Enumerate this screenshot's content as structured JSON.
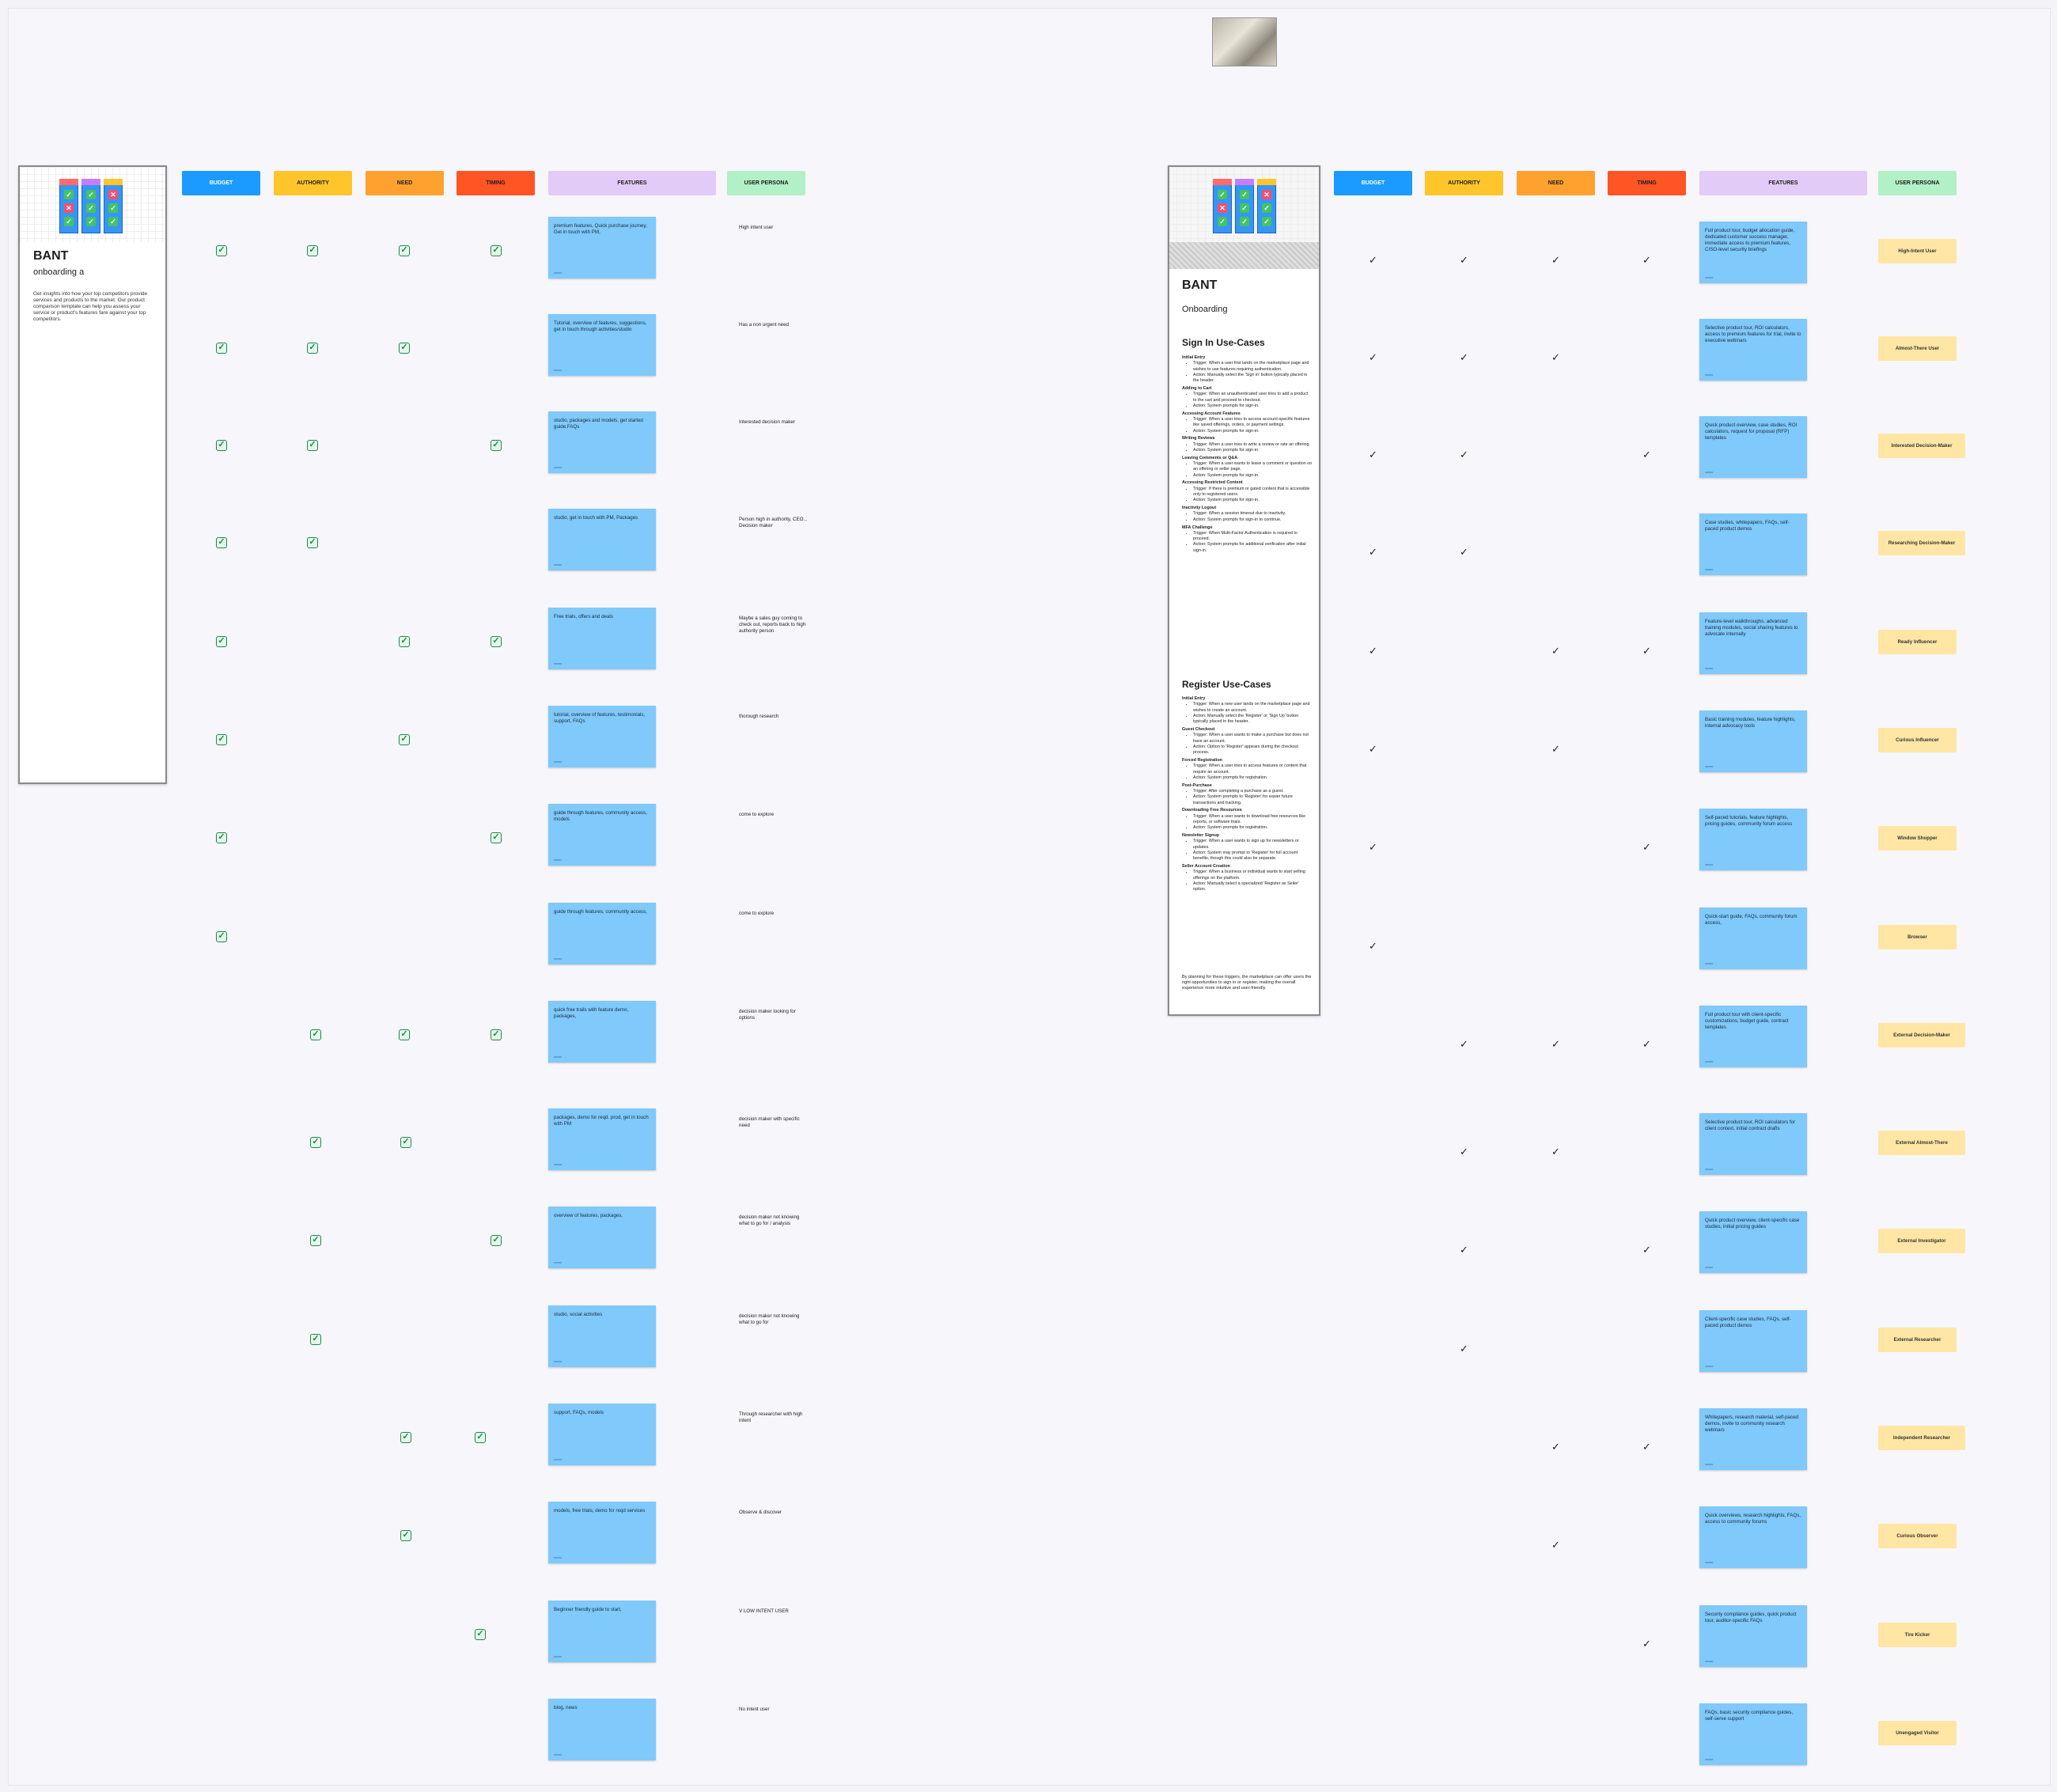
{
  "colors": {
    "budget": "#1b9bff",
    "authority": "#ffc52a",
    "need": "#ffa12e",
    "timing": "#ff5424",
    "features": "#e2cbf7",
    "persona": "#b2f0c7",
    "note": "#7fc9fb",
    "persona_chip": "#ffe6a5"
  },
  "left_card": {
    "title": "BANT",
    "subtitle": "onboarding a",
    "description": "Get insights into how your top competitors provide services and products to the market. Our product comparison template can help you assess your service or product's features fare against your top competitors."
  },
  "right_card": {
    "title": "BANT",
    "subtitle": "Onboarding",
    "signin_heading": "Sign In Use-Cases",
    "signin": [
      {
        "name": "Initial Entry",
        "points": [
          "Trigger: When a user first lands on the marketplace page and wishes to use features requiring authentication.",
          "Action: Manually select the 'Sign in' button typically placed in the header."
        ]
      },
      {
        "name": "Adding to Cart",
        "points": [
          "Trigger: When an unauthenticated user tries to add a product to the cart and proceed to checkout.",
          "Action: System prompts for sign-in."
        ]
      },
      {
        "name": "Accessing Account Features",
        "points": [
          "Trigger: When a user tries to access account-specific features like saved offerings, orders, or payment settings.",
          "Action: System prompts for sign-in."
        ]
      },
      {
        "name": "Writing Reviews",
        "points": [
          "Trigger: When a user tries to write a review or rate an offering.",
          "Action: System prompts for sign-in."
        ]
      },
      {
        "name": "Leaving Comments or Q&A",
        "points": [
          "Trigger: When a user wants to leave a comment or question on an offering or seller page.",
          "Action: System prompts for sign-in."
        ]
      },
      {
        "name": "Accessing Restricted Content",
        "points": [
          "Trigger: If there is premium or gated content that is accessible only to registered users.",
          "Action: System prompts for sign-in."
        ]
      },
      {
        "name": "Inactivity Logout",
        "points": [
          "Trigger: When a session timeout due to inactivity.",
          "Action: System prompts for sign-in to continue."
        ]
      },
      {
        "name": "MFA Challenge",
        "points": [
          "Trigger: When Multi-Factor Authentication is required to proceed.",
          "Action: System prompts for additional verification after initial sign-in."
        ]
      }
    ],
    "register_heading": "Register Use-Cases",
    "register": [
      {
        "name": "Initial Entry",
        "points": [
          "Trigger: When a new user lands on the marketplace page and wishes to create an account.",
          "Action: Manually select the 'Register' or 'Sign Up' button typically placed in the header."
        ]
      },
      {
        "name": "Guest Checkout",
        "points": [
          "Trigger: When a user wants to make a purchase but does not have an account.",
          "Action: Option to 'Register' appears during the checkout process."
        ]
      },
      {
        "name": "Forced Registration",
        "points": [
          "Trigger: When a user tries to access features or content that require an account.",
          "Action: System prompts for registration."
        ]
      },
      {
        "name": "Post-Purchase",
        "points": [
          "Trigger: After completing a purchase as a guest.",
          "Action: System prompts to 'Register' for easier future transactions and tracking."
        ]
      },
      {
        "name": "Downloading Free Resources",
        "points": [
          "Trigger: When a user wants to download free resources like reports, or software trials.",
          "Action: System prompts for registration."
        ]
      },
      {
        "name": "Newsletter Signup",
        "points": [
          "Trigger: When a user wants to sign up for newsletters or updates.",
          "Action: System may prompt to 'Register' for full account benefits, though this could also be separate."
        ]
      },
      {
        "name": "Seller Account Creation",
        "points": [
          "Trigger: When a business or individual wants to start selling offerings on the platform.",
          "Action: Manually select a specialized 'Register as Seller' option."
        ]
      }
    ],
    "outro": "By planning for these triggers, the marketplace can offer users the right opportunities to sign in or register, making the overall experience more intuitive and user-friendly."
  },
  "headers": {
    "budget": "BUDGET",
    "authority": "AUTHORITY",
    "need": "NEED",
    "timing": "TIMING",
    "features": "FEATURES",
    "persona": "USER PERSONA"
  },
  "left_rows": [
    {
      "b": true,
      "a": true,
      "n": true,
      "t": true,
      "feature": "premium features, Quick purchase journey, Get in touch with PM,",
      "persona": "High intent user"
    },
    {
      "b": true,
      "a": true,
      "n": true,
      "t": false,
      "feature": "Tutorial, overview of features, suggestions, get in touch through activities/studio",
      "persona": "Has a non urgent need"
    },
    {
      "b": true,
      "a": true,
      "n": false,
      "t": true,
      "feature": "studio, packages and models, get started guide,FAQs",
      "persona": "Interested decision maker"
    },
    {
      "b": true,
      "a": true,
      "n": false,
      "t": false,
      "feature": "studio, get in touch with PM, Packages",
      "persona": "Person high in authority, CEO... Decision maker"
    },
    {
      "b": true,
      "a": false,
      "n": true,
      "t": true,
      "feature": "Free trials, offers and deals",
      "persona": "Maybe a sales guy coming to check out, reports back to high authority person"
    },
    {
      "b": true,
      "a": false,
      "n": true,
      "t": false,
      "feature": "tutorial, overview of features, testimonials, support, FAQs",
      "persona": "thorough research"
    },
    {
      "b": true,
      "a": false,
      "n": false,
      "t": true,
      "feature": "guide through features, community access, models",
      "persona": "come to explore"
    },
    {
      "b": true,
      "a": false,
      "n": false,
      "t": false,
      "feature": "guide through features, community access,",
      "persona": "come to explore"
    },
    {
      "b": false,
      "a": true,
      "n": true,
      "t": true,
      "feature": "quick free trails with feature demo, packages,",
      "persona": "decision maker looking for options"
    },
    {
      "b": false,
      "a": true,
      "n": true,
      "t": false,
      "feature": "packages, demo for reqd. prod, get in touch with PM",
      "persona": "decision maker with specific need"
    },
    {
      "b": false,
      "a": true,
      "n": false,
      "t": true,
      "feature": "overview of features, packages,",
      "persona": "decision maker not knowing what to go for / analysis"
    },
    {
      "b": false,
      "a": true,
      "n": false,
      "t": false,
      "feature": "studio, social activities",
      "persona": "decision maker not knowing what to go for"
    },
    {
      "b": false,
      "a": false,
      "n": true,
      "t": true,
      "feature": "support, FAQs, models",
      "persona": "Through researcher with high intent"
    },
    {
      "b": false,
      "a": false,
      "n": true,
      "t": false,
      "feature": "models, free trials, demo for reqd services",
      "persona": "Observe & discover"
    },
    {
      "b": false,
      "a": false,
      "n": false,
      "t": true,
      "feature": "Beginner friendly guide to start,",
      "persona": "V LOW INTENT USER"
    },
    {
      "b": false,
      "a": false,
      "n": false,
      "t": false,
      "feature": "blog, news",
      "persona": "No intent user"
    }
  ],
  "right_rows": [
    {
      "b": true,
      "a": true,
      "n": true,
      "t": true,
      "feature": "Full product tour, budget allocation guide, dedicated customer success manager, immediate access to premium features, CISO-level security briefings",
      "persona": "High-Intent User"
    },
    {
      "b": true,
      "a": true,
      "n": true,
      "t": false,
      "feature": "Selective product tour, ROI calculators, access to premium features for trial, invite to executive webinars",
      "persona": "Almost-There User"
    },
    {
      "b": true,
      "a": true,
      "n": false,
      "t": true,
      "feature": "Quick product overview, case studies, ROI calculators, request for proposal (RFP) templates",
      "persona": "Interested Decision-Maker"
    },
    {
      "b": true,
      "a": true,
      "n": false,
      "t": false,
      "feature": "Case studies, whitepapers, FAQs, self-paced product demos",
      "persona": "Researching Decision-Maker"
    },
    {
      "b": true,
      "a": false,
      "n": true,
      "t": true,
      "feature": "Feature-level walkthroughs, advanced training modules, social sharing features to advocate internally",
      "persona": "Ready Influencer"
    },
    {
      "b": true,
      "a": false,
      "n": true,
      "t": false,
      "feature": "Basic training modules, feature highlights, internal advocacy tools",
      "persona": "Curious Influencer"
    },
    {
      "b": true,
      "a": false,
      "n": false,
      "t": true,
      "feature": "Self-paced tutorials, feature highlights, pricing guides, community forum access",
      "persona": "Window Shopper"
    },
    {
      "b": true,
      "a": false,
      "n": false,
      "t": false,
      "feature": "Quick-start guide, FAQs, community forum access,",
      "persona": "Browser"
    },
    {
      "b": false,
      "a": true,
      "n": true,
      "t": true,
      "feature": "Full product tour with client-specific customizations, budget guide, contract templates",
      "persona": "External Decision-Maker"
    },
    {
      "b": false,
      "a": true,
      "n": true,
      "t": false,
      "feature": "Selective product tour, ROI calculators for client context, initial contract drafts",
      "persona": "External Almost-There"
    },
    {
      "b": false,
      "a": true,
      "n": false,
      "t": true,
      "feature": "Quick product overview, client-specific case studies, initial pricing guides",
      "persona": "External Investigator"
    },
    {
      "b": false,
      "a": true,
      "n": false,
      "t": false,
      "feature": "Client-specific case studies, FAQs, self-paced product demos",
      "persona": "External Researcher"
    },
    {
      "b": false,
      "a": false,
      "n": true,
      "t": true,
      "feature": "Whitepapers, research material, self-paced demos, invite to community research webinars",
      "persona": "Independent Researcher"
    },
    {
      "b": false,
      "a": false,
      "n": true,
      "t": false,
      "feature": "Quick overviews, research highlights, FAQs, access to community forums",
      "persona": "Curious Observer"
    },
    {
      "b": false,
      "a": false,
      "n": false,
      "t": true,
      "feature": "Security compliance guides, quick product tour, auditor-specific FAQs",
      "persona": "Tire Kicker"
    },
    {
      "b": false,
      "a": false,
      "n": false,
      "t": false,
      "feature": "FAQs, basic security compliance guides, self-serve support",
      "persona": "Unengaged Visitor"
    }
  ]
}
